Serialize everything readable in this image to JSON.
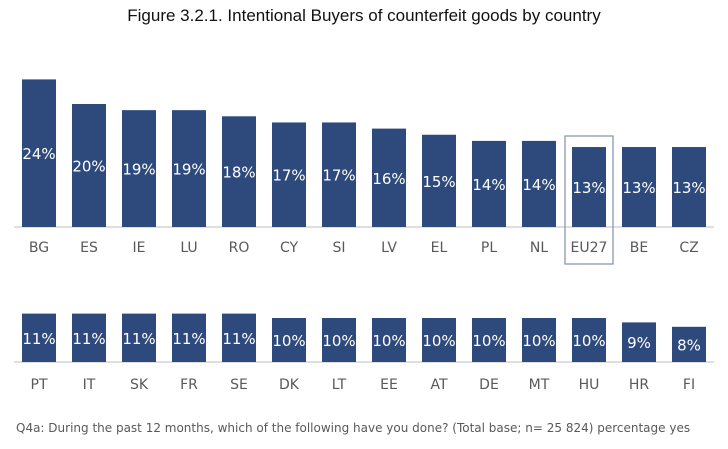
{
  "title": "Figure 3.2.1. Intentional Buyers of counterfeit goods by country",
  "footnote": "Q4a: During the past 12 months, which of the following have you done? (Total base; n= 25 824)  percentage yes",
  "colors": {
    "bar": "#2e4a7d",
    "bar_label": "#ffffff",
    "axis": "#bfbfbf",
    "tick_label": "#595959",
    "highlight_box": "#7f90ad"
  },
  "chart_data": {
    "type": "bar",
    "value_suffix": "%",
    "highlight": "EU27",
    "panels": [
      {
        "categories": [
          "BG",
          "ES",
          "IE",
          "LU",
          "RO",
          "CY",
          "SI",
          "LV",
          "EL",
          "PL",
          "NL",
          "EU27",
          "BE",
          "CZ"
        ],
        "values": [
          24,
          20,
          19,
          19,
          18,
          17,
          17,
          16,
          15,
          14,
          14,
          13,
          13,
          13
        ]
      },
      {
        "categories": [
          "PT",
          "IT",
          "SK",
          "FR",
          "SE",
          "DK",
          "LT",
          "EE",
          "AT",
          "DE",
          "MT",
          "HU",
          "HR",
          "FI"
        ],
        "values": [
          11,
          11,
          11,
          11,
          11,
          10,
          10,
          10,
          10,
          10,
          10,
          10,
          9,
          8
        ]
      }
    ]
  }
}
